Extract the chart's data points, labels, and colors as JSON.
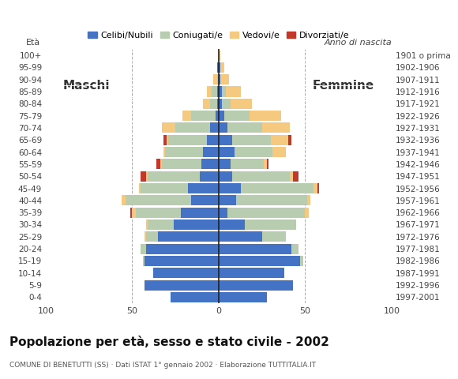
{
  "age_groups": [
    "0-4",
    "5-9",
    "10-14",
    "15-19",
    "20-24",
    "25-29",
    "30-34",
    "35-39",
    "40-44",
    "45-49",
    "50-54",
    "55-59",
    "60-64",
    "65-69",
    "70-74",
    "75-79",
    "80-84",
    "85-89",
    "90-94",
    "95-99",
    "100+"
  ],
  "birth_years": [
    "1997-2001",
    "1992-1996",
    "1987-1991",
    "1982-1986",
    "1977-1981",
    "1972-1976",
    "1967-1971",
    "1962-1966",
    "1957-1961",
    "1952-1956",
    "1947-1951",
    "1942-1946",
    "1937-1941",
    "1932-1936",
    "1927-1931",
    "1922-1926",
    "1917-1921",
    "1912-1916",
    "1907-1911",
    "1902-1906",
    "1901 o prima"
  ],
  "males": {
    "celibe": [
      28,
      43,
      38,
      43,
      42,
      35,
      26,
      22,
      16,
      18,
      11,
      10,
      9,
      7,
      5,
      2,
      1,
      1,
      0,
      1,
      0
    ],
    "coniugato": [
      0,
      0,
      0,
      1,
      3,
      7,
      15,
      26,
      38,
      27,
      30,
      23,
      22,
      22,
      20,
      14,
      4,
      3,
      1,
      0,
      0
    ],
    "vedovo": [
      0,
      0,
      0,
      0,
      0,
      1,
      1,
      2,
      2,
      1,
      1,
      1,
      1,
      1,
      8,
      5,
      4,
      3,
      2,
      0,
      0
    ],
    "divorziato": [
      0,
      0,
      0,
      0,
      0,
      0,
      0,
      1,
      0,
      0,
      3,
      2,
      0,
      2,
      0,
      0,
      0,
      0,
      0,
      0,
      0
    ]
  },
  "females": {
    "nubile": [
      28,
      43,
      38,
      47,
      42,
      25,
      15,
      5,
      10,
      13,
      8,
      7,
      9,
      8,
      5,
      3,
      2,
      2,
      1,
      1,
      0
    ],
    "coniugata": [
      0,
      0,
      0,
      2,
      4,
      14,
      30,
      45,
      41,
      42,
      33,
      19,
      22,
      22,
      20,
      15,
      5,
      2,
      0,
      0,
      0
    ],
    "vedova": [
      0,
      0,
      0,
      0,
      0,
      0,
      0,
      2,
      2,
      2,
      2,
      2,
      8,
      10,
      16,
      18,
      12,
      9,
      5,
      2,
      1
    ],
    "divorziata": [
      0,
      0,
      0,
      0,
      0,
      0,
      0,
      0,
      0,
      1,
      3,
      1,
      0,
      2,
      0,
      0,
      0,
      0,
      0,
      0,
      0
    ]
  },
  "colors": {
    "celibe": "#4472C4",
    "coniugato": "#B8CCB0",
    "vedovo": "#F5C97F",
    "divorziato": "#C0392B"
  },
  "legend_labels": [
    "Celibi/Nubili",
    "Coniugati/e",
    "Vedovi/e",
    "Divorziati/e"
  ],
  "title": "Popolazione per età, sesso e stato civile - 2002",
  "subtitle": "COMUNE DI BENETUTTI (SS) · Dati ISTAT 1° gennaio 2002 · Elaborazione TUTTITALIA.IT",
  "label_maschi": "Maschi",
  "label_femmine": "Femmine",
  "label_eta": "Età",
  "label_anno": "Anno di nascita",
  "xlim": 100,
  "background_color": "#ffffff",
  "bar_height": 0.85
}
